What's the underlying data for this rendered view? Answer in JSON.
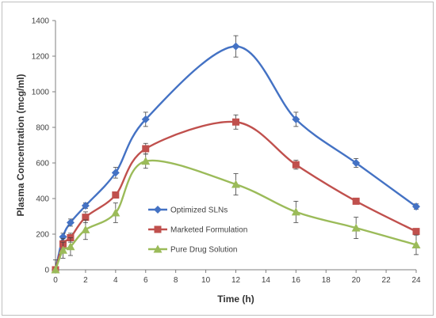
{
  "chart_data": {
    "type": "line",
    "title": "",
    "xlabel": "Time  (h)",
    "ylabel": "Plasma Concentration  (mcg/ml)",
    "xlim": [
      0,
      24
    ],
    "ylim": [
      0,
      1400
    ],
    "xticks": [
      0,
      2,
      4,
      6,
      8,
      10,
      12,
      14,
      16,
      18,
      20,
      22,
      24
    ],
    "yticks": [
      0,
      200,
      400,
      600,
      800,
      1000,
      1200,
      1400
    ],
    "grid": false,
    "legend_position": "lower-left-inside",
    "series": [
      {
        "name": "Optimized SLNs",
        "color": "#4472C4",
        "marker": "diamond",
        "x": [
          0,
          0.5,
          1,
          2,
          4,
          6,
          12,
          16,
          20,
          24
        ],
        "y": [
          0,
          185,
          265,
          360,
          545,
          845,
          1255,
          845,
          600,
          355
        ],
        "err": [
          0,
          20,
          20,
          15,
          30,
          40,
          60,
          40,
          25,
          15
        ]
      },
      {
        "name": "Marketed Formulation",
        "color": "#C0504D",
        "marker": "square",
        "x": [
          0,
          0.5,
          1,
          2,
          4,
          6,
          12,
          16,
          20,
          24
        ],
        "y": [
          0,
          145,
          180,
          295,
          420,
          680,
          830,
          590,
          385,
          215
        ],
        "err": [
          0,
          30,
          25,
          30,
          15,
          30,
          40,
          25,
          10,
          15
        ]
      },
      {
        "name": "Pure Drug Solution",
        "color": "#9BBB59",
        "marker": "triangle",
        "x": [
          0,
          0.5,
          1,
          2,
          4,
          6,
          12,
          16,
          20,
          24
        ],
        "y": [
          0,
          110,
          130,
          225,
          320,
          610,
          480,
          325,
          235,
          140
        ],
        "err": [
          55,
          45,
          50,
          55,
          55,
          40,
          60,
          60,
          60,
          55
        ]
      }
    ]
  }
}
